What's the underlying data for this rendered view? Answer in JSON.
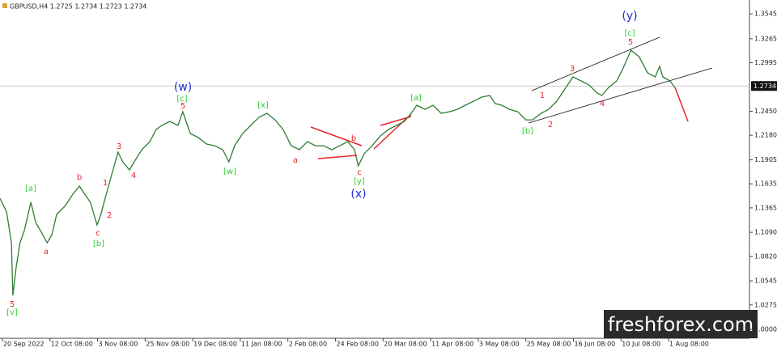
{
  "chart_data": {
    "type": "line",
    "title": "GBPUSD,H4  1.2725 1.2734 1.2723 1.2734",
    "watermark": "freshforex.com",
    "last_price": 1.2734,
    "xlim": [
      -0.05,
      15.7
    ],
    "ylim": [
      0.99,
      1.37
    ],
    "xticks": [
      {
        "value": 0,
        "label": "20 Sep 2022"
      },
      {
        "value": 1,
        "label": "12 Oct 08:00"
      },
      {
        "value": 2,
        "label": "3 Nov 08:00"
      },
      {
        "value": 3,
        "label": "25 Nov 08:00"
      },
      {
        "value": 4,
        "label": "19 Dec 08:00"
      },
      {
        "value": 5,
        "label": "11 Jan 08:00"
      },
      {
        "value": 6,
        "label": "2 Feb 08:00"
      },
      {
        "value": 7,
        "label": "24 Feb 08:00"
      },
      {
        "value": 8,
        "label": "20 Mar 08:00"
      },
      {
        "value": 9,
        "label": "11 Apr 08:00"
      },
      {
        "value": 10,
        "label": "3 May 08:00"
      },
      {
        "value": 11,
        "label": "25 May 08:00"
      },
      {
        "value": 12,
        "label": "16 Jun 08:00"
      },
      {
        "value": 13,
        "label": "10 Jul 08:00"
      },
      {
        "value": 14,
        "label": "1 Aug 08:00"
      }
    ],
    "yticks": [
      1.3545,
      1.3265,
      1.2995,
      {
        "value": 1.245,
        "label": "1.2450"
      },
      {
        "value": 1.218,
        "label": "1.2180"
      },
      1.1905,
      1.1635,
      1.1365,
      {
        "value": 1.109,
        "label": "1.1090"
      },
      {
        "value": 1.082,
        "label": "1.0820"
      },
      1.0545,
      1.0275,
      {
        "value": 1,
        "label": "1.0000"
      }
    ],
    "series": [
      {
        "name": "GBPUSD",
        "color": "#2e7d32",
        "x": [
          -0.05,
          0.09,
          0.19,
          0.22,
          0.29,
          0.37,
          0.46,
          0.6,
          0.7,
          0.8,
          0.94,
          1.04,
          1.14,
          1.31,
          1.48,
          1.62,
          1.73,
          1.85,
          1.99,
          2.07,
          2.16,
          2.3,
          2.43,
          2.53,
          2.67,
          2.77,
          2.93,
          3.1,
          3.23,
          3.35,
          3.52,
          3.69,
          3.79,
          3.86,
          3.95,
          4.12,
          4.29,
          4.46,
          4.63,
          4.76,
          4.88,
          5.05,
          5.22,
          5.39,
          5.56,
          5.73,
          5.9,
          6.07,
          6.24,
          6.41,
          6.58,
          6.75,
          6.92,
          7.09,
          7.26,
          7.4,
          7.48,
          7.6,
          7.77,
          7.94,
          8.11,
          8.28,
          8.45,
          8.59,
          8.71,
          8.88,
          9.05,
          9.22,
          9.39,
          9.56,
          9.73,
          9.9,
          10.07,
          10.24,
          10.36,
          10.49,
          10.66,
          10.83,
          11.0,
          11.14,
          11.32,
          11.48,
          11.65,
          11.82,
          11.99,
          12.16,
          12.33,
          12.5,
          12.6,
          12.74,
          12.91,
          13.04,
          13.21,
          13.38,
          13.56,
          13.72,
          13.81,
          13.88,
          14.03,
          14.13
        ],
        "values": [
          1.1472,
          1.1318,
          1.0973,
          1.0382,
          1.07,
          1.0973,
          1.1109,
          1.1427,
          1.12,
          1.1109,
          1.0973,
          1.1063,
          1.1291,
          1.1382,
          1.1518,
          1.1609,
          1.1518,
          1.1427,
          1.1173,
          1.1291,
          1.1472,
          1.1745,
          1.1991,
          1.1882,
          1.1791,
          1.1882,
          1.2018,
          1.2109,
          1.2245,
          1.2291,
          1.2336,
          1.2291,
          1.2445,
          1.2336,
          1.22,
          1.2154,
          1.2082,
          1.2063,
          1.2018,
          1.1882,
          1.2063,
          1.22,
          1.2291,
          1.2381,
          1.2427,
          1.2354,
          1.2245,
          1.2063,
          1.2018,
          1.2109,
          1.2063,
          1.2063,
          1.2018,
          1.2063,
          1.2109,
          1.2018,
          1.1836,
          1.1972,
          1.2063,
          1.2172,
          1.2245,
          1.2291,
          1.2336,
          1.2427,
          1.2518,
          1.2472,
          1.2518,
          1.2427,
          1.2445,
          1.2472,
          1.2518,
          1.2563,
          1.2609,
          1.2627,
          1.2536,
          1.2518,
          1.2472,
          1.2445,
          1.2354,
          1.2354,
          1.2427,
          1.2472,
          1.2563,
          1.27,
          1.2836,
          1.2791,
          1.2745,
          1.2654,
          1.2627,
          1.2718,
          1.2791,
          1.2927,
          1.3136,
          1.3063,
          1.2881,
          1.2836,
          1.2954,
          1.2836,
          1.2791,
          1.2718
        ]
      }
    ],
    "annotations": [
      {
        "text": "[v]",
        "color": "#2fcf2f"
      },
      {
        "text": "5",
        "color": "#e8242b"
      },
      {
        "text": "[a]",
        "color": "#2fcf2f"
      },
      {
        "text": "a",
        "color": "#e8242b"
      },
      {
        "text": "b",
        "color": "#e8242b"
      },
      {
        "text": "1",
        "color": "#e8242b"
      },
      {
        "text": "2",
        "color": "#e8242b"
      },
      {
        "text": "c",
        "color": "#e8242b"
      },
      {
        "text": "[b]",
        "color": "#2fcf2f"
      },
      {
        "text": "3",
        "color": "#e8242b"
      },
      {
        "text": "4",
        "color": "#e8242b"
      },
      {
        "text": "5",
        "color": "#e8242b"
      },
      {
        "text": "[c]",
        "color": "#2fcf2f"
      },
      {
        "text": "(w)",
        "color": "#1f2fd9"
      },
      {
        "text": "[w]",
        "color": "#2fcf2f"
      },
      {
        "text": "[x]",
        "color": "#2fcf2f"
      },
      {
        "text": "a",
        "color": "#e8242b"
      },
      {
        "text": "b",
        "color": "#e8242b"
      },
      {
        "text": "c",
        "color": "#e8242b"
      },
      {
        "text": "[y]",
        "color": "#2fcf2f"
      },
      {
        "text": "(x)",
        "color": "#1f2fd9"
      },
      {
        "text": "[a]",
        "color": "#2fcf2f"
      },
      {
        "text": "[b]",
        "color": "#2fcf2f"
      },
      {
        "text": "1",
        "color": "#e8242b"
      },
      {
        "text": "2",
        "color": "#e8242b"
      },
      {
        "text": "3",
        "color": "#e8242b"
      },
      {
        "text": "4",
        "color": "#e8242b"
      },
      {
        "text": "5",
        "color": "#e8242b"
      },
      {
        "text": "[c]",
        "color": "#2fcf2f"
      },
      {
        "text": "(y)",
        "color": "#1f2fd9"
      }
    ]
  }
}
